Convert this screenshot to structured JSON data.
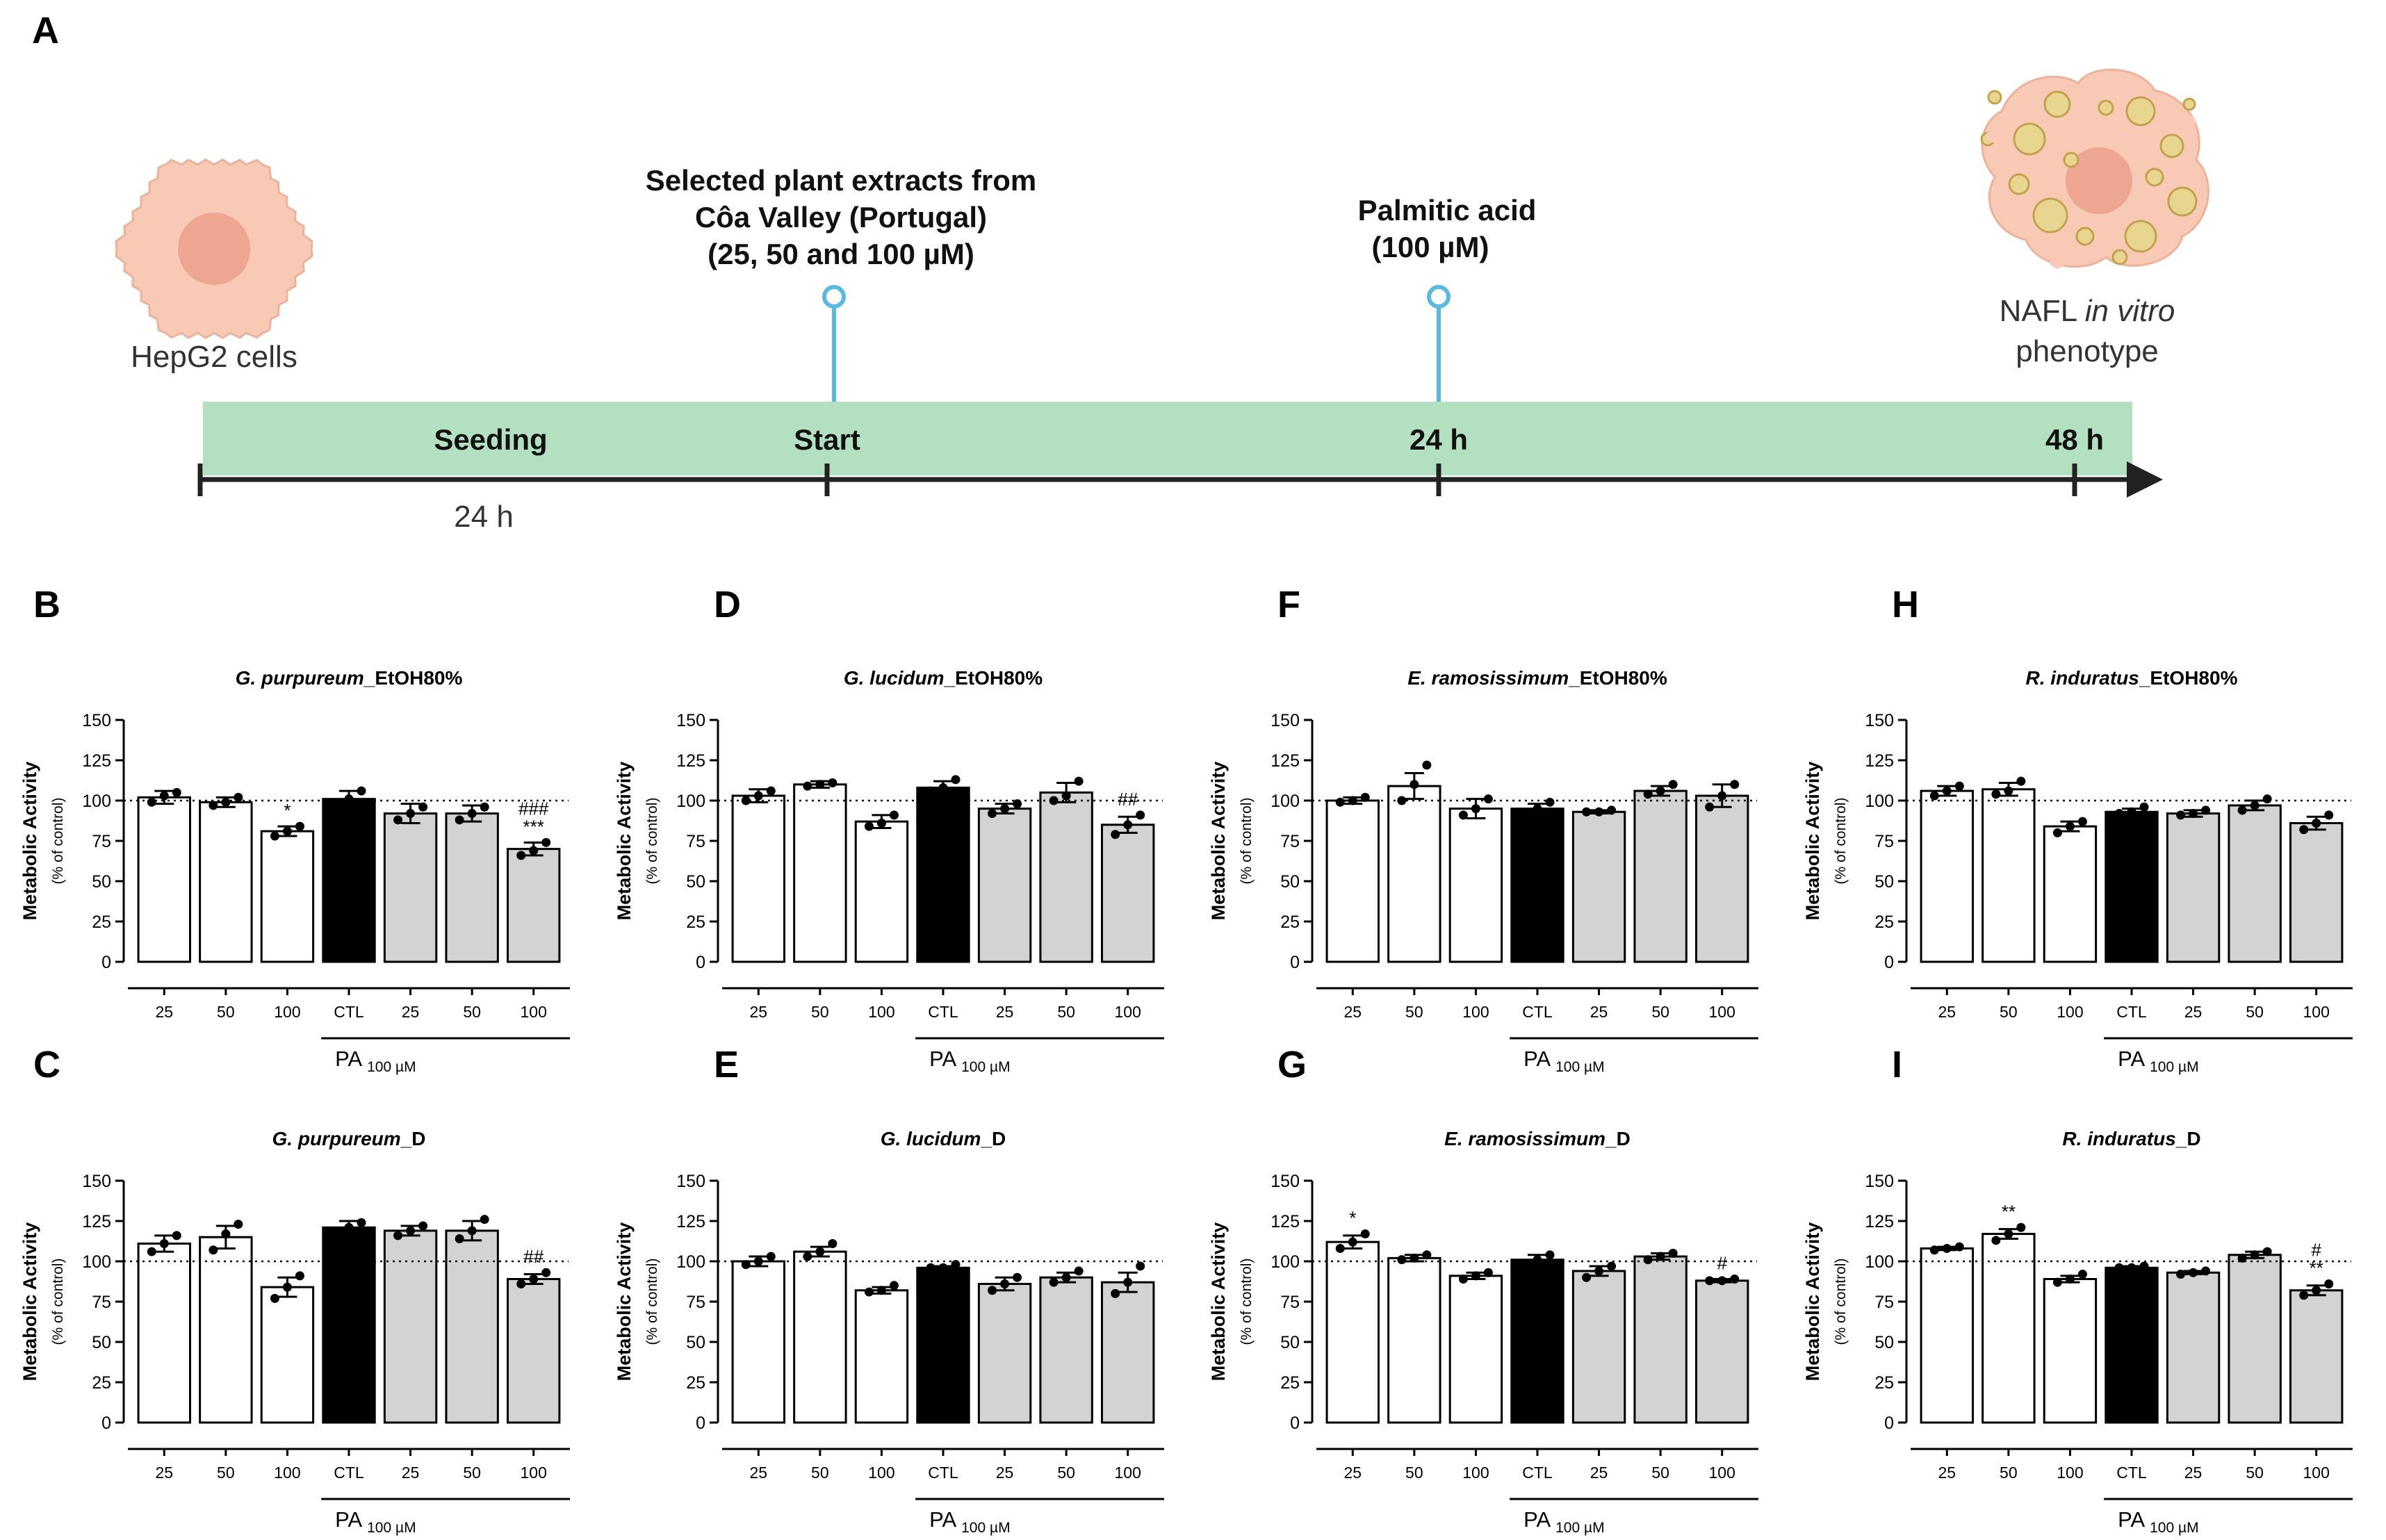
{
  "figure": {
    "panel_A_letter": "A",
    "timeline": {
      "cells_label": "HepG2 cells",
      "extract_lines": [
        "Selected plant extracts from",
        "Côa Valley (Portugal)",
        "(25, 50 and 100 µM)"
      ],
      "pa_lines": [
        "Palmitic acid",
        "(100 µM)"
      ],
      "seeding": "Seeding",
      "start": "Start",
      "t24": "24 h",
      "t48": "48 h",
      "below_24h": "24 h",
      "nafl_pre": "NAFL ",
      "nafl_italic": "in vitro",
      "nafl_line2": "phenotype"
    },
    "colors": {
      "timeline_band": "#b3e0c0",
      "marker": "#5bb8de",
      "cell_fill": "#f8c9b4",
      "cell_nucleus": "#eea592",
      "bar_extract": "#ffffff",
      "bar_ctl": "#000000",
      "bar_pa": "#d3d3d3"
    },
    "icons": [
      "hepg2-cell-icon",
      "nafl-cell-icon"
    ]
  },
  "chart_data": [
    {
      "panel": "B",
      "type": "bar",
      "title_species": "G. purpureum",
      "title_suffix": "_EtOH80%",
      "ylabel": "Metabolic Activity",
      "ylabel_sub": "(% of control)",
      "ylim": [
        0,
        150
      ],
      "yticks": [
        0,
        25,
        50,
        75,
        100,
        125,
        150
      ],
      "categories": [
        "25",
        "50",
        "100",
        "CTL",
        "25",
        "50",
        "100"
      ],
      "group_label": "PA",
      "group_sub": "100 µM",
      "reference_line": 100,
      "values": [
        102,
        99,
        81,
        101,
        92,
        92,
        70
      ],
      "sem": [
        4,
        3,
        3,
        5,
        6,
        5,
        4
      ],
      "points": [
        [
          99,
          103,
          105
        ],
        [
          97,
          99,
          102
        ],
        [
          78,
          81,
          84
        ],
        [
          98,
          101,
          106
        ],
        [
          88,
          92,
          96
        ],
        [
          88,
          92,
          96
        ],
        [
          66,
          69,
          74
        ]
      ],
      "annotations": [
        {
          "index": 2,
          "lines": [
            "*"
          ]
        },
        {
          "index": 6,
          "lines": [
            "###",
            "***"
          ]
        }
      ]
    },
    {
      "panel": "D",
      "type": "bar",
      "title_species": "G. lucidum",
      "title_suffix": "_EtOH80%",
      "ylabel": "Metabolic Activity",
      "ylabel_sub": "(% of control)",
      "ylim": [
        0,
        150
      ],
      "yticks": [
        0,
        25,
        50,
        75,
        100,
        125,
        150
      ],
      "categories": [
        "25",
        "50",
        "100",
        "CTL",
        "25",
        "50",
        "100"
      ],
      "group_label": "PA",
      "group_sub": "100 µM",
      "reference_line": 100,
      "values": [
        103,
        110,
        87,
        108,
        95,
        105,
        85
      ],
      "sem": [
        4,
        2,
        4,
        4,
        3,
        6,
        5
      ],
      "points": [
        [
          100,
          103,
          106
        ],
        [
          109,
          110,
          111
        ],
        [
          84,
          86,
          91
        ],
        [
          106,
          108,
          113
        ],
        [
          92,
          95,
          98
        ],
        [
          100,
          103,
          112
        ],
        [
          79,
          85,
          91
        ]
      ],
      "annotations": [
        {
          "index": 6,
          "lines": [
            "##"
          ]
        }
      ]
    },
    {
      "panel": "F",
      "type": "bar",
      "title_species": "E. ramosissimum",
      "title_suffix": "_EtOH80%",
      "ylabel": "Metabolic Activity",
      "ylabel_sub": "(% of control)",
      "ylim": [
        0,
        150
      ],
      "yticks": [
        0,
        25,
        50,
        75,
        100,
        125,
        150
      ],
      "categories": [
        "25",
        "50",
        "100",
        "CTL",
        "25",
        "50",
        "100"
      ],
      "group_label": "PA",
      "group_sub": "100 µM",
      "reference_line": 100,
      "values": [
        100,
        109,
        95,
        95,
        93,
        106,
        103
      ],
      "sem": [
        2,
        8,
        6,
        3,
        1,
        3,
        7
      ],
      "points": [
        [
          99,
          100,
          102
        ],
        [
          100,
          110,
          122
        ],
        [
          91,
          95,
          101
        ],
        [
          91,
          95,
          99
        ],
        [
          93,
          93,
          94
        ],
        [
          104,
          106,
          110
        ],
        [
          96,
          103,
          110
        ]
      ],
      "annotations": []
    },
    {
      "panel": "H",
      "type": "bar",
      "title_species": "R. induratus",
      "title_suffix": "_EtOH80%",
      "ylabel": "Metabolic Activity",
      "ylabel_sub": "(% of control)",
      "ylim": [
        0,
        150
      ],
      "yticks": [
        0,
        25,
        50,
        75,
        100,
        125,
        150
      ],
      "categories": [
        "25",
        "50",
        "100",
        "CTL",
        "25",
        "50",
        "100"
      ],
      "group_label": "PA",
      "group_sub": "100 µM",
      "reference_line": 100,
      "values": [
        106,
        107,
        84,
        93,
        92,
        97,
        86
      ],
      "sem": [
        3,
        4,
        3,
        2,
        2,
        3,
        4
      ],
      "points": [
        [
          103,
          106,
          109
        ],
        [
          104,
          106,
          112
        ],
        [
          80,
          84,
          87
        ],
        [
          92,
          93,
          96
        ],
        [
          91,
          92,
          94
        ],
        [
          94,
          97,
          101
        ],
        [
          82,
          86,
          91
        ]
      ],
      "annotations": []
    },
    {
      "panel": "C",
      "type": "bar",
      "title_species": "G. purpureum",
      "title_suffix": "_D",
      "ylabel": "Metabolic Activity",
      "ylabel_sub": "(% of control)",
      "ylim": [
        0,
        150
      ],
      "yticks": [
        0,
        25,
        50,
        75,
        100,
        125,
        150
      ],
      "categories": [
        "25",
        "50",
        "100",
        "CTL",
        "25",
        "50",
        "100"
      ],
      "group_label": "PA",
      "group_sub": "100 µM",
      "reference_line": 100,
      "values": [
        111,
        115,
        84,
        121,
        119,
        119,
        89
      ],
      "sem": [
        5,
        7,
        6,
        4,
        3,
        6,
        3
      ],
      "points": [
        [
          106,
          111,
          116
        ],
        [
          107,
          117,
          123
        ],
        [
          77,
          84,
          91
        ],
        [
          117,
          121,
          124
        ],
        [
          116,
          119,
          122
        ],
        [
          114,
          119,
          126
        ],
        [
          86,
          89,
          93
        ]
      ],
      "annotations": [
        {
          "index": 6,
          "lines": [
            "##"
          ]
        }
      ]
    },
    {
      "panel": "E",
      "type": "bar",
      "title_species": "G. lucidum",
      "title_suffix": "_D",
      "ylabel": "Metabolic Activity",
      "ylabel_sub": "(% of control)",
      "ylim": [
        0,
        150
      ],
      "yticks": [
        0,
        25,
        50,
        75,
        100,
        125,
        150
      ],
      "categories": [
        "25",
        "50",
        "100",
        "CTL",
        "25",
        "50",
        "100"
      ],
      "group_label": "PA",
      "group_sub": "100 µM",
      "reference_line": 100,
      "values": [
        100,
        106,
        82,
        96,
        86,
        90,
        87
      ],
      "sem": [
        3,
        3,
        2,
        1,
        4,
        3,
        6
      ],
      "points": [
        [
          98,
          100,
          103
        ],
        [
          103,
          106,
          111
        ],
        [
          81,
          82,
          85
        ],
        [
          96,
          96,
          98
        ],
        [
          82,
          86,
          90
        ],
        [
          87,
          90,
          94
        ],
        [
          80,
          87,
          97
        ]
      ],
      "annotations": []
    },
    {
      "panel": "G",
      "type": "bar",
      "title_species": "E. ramosissimum",
      "title_suffix": "_D",
      "ylabel": "Metabolic Activity",
      "ylabel_sub": "(% of control)",
      "ylim": [
        0,
        150
      ],
      "yticks": [
        0,
        25,
        50,
        75,
        100,
        125,
        150
      ],
      "categories": [
        "25",
        "50",
        "100",
        "CTL",
        "25",
        "50",
        "100"
      ],
      "group_label": "PA",
      "group_sub": "100 µM",
      "reference_line": 100,
      "values": [
        112,
        102,
        91,
        101,
        94,
        103,
        88
      ],
      "sem": [
        4,
        2,
        2,
        3,
        3,
        2,
        1
      ],
      "points": [
        [
          108,
          112,
          117
        ],
        [
          101,
          102,
          104
        ],
        [
          89,
          91,
          93
        ],
        [
          98,
          101,
          104
        ],
        [
          90,
          94,
          97
        ],
        [
          101,
          103,
          105
        ],
        [
          88,
          88,
          89
        ]
      ],
      "annotations": [
        {
          "index": 0,
          "lines": [
            "*"
          ]
        },
        {
          "index": 6,
          "lines": [
            "#"
          ]
        }
      ]
    },
    {
      "panel": "I",
      "type": "bar",
      "title_species": "R. induratus",
      "title_suffix": "_D",
      "ylabel": "Metabolic Activity",
      "ylabel_sub": "(% of control)",
      "ylim": [
        0,
        150
      ],
      "yticks": [
        0,
        25,
        50,
        75,
        100,
        125,
        150
      ],
      "categories": [
        "25",
        "50",
        "100",
        "CTL",
        "25",
        "50",
        "100"
      ],
      "group_label": "PA",
      "group_sub": "100 µM",
      "reference_line": 100,
      "values": [
        108,
        117,
        89,
        96,
        93,
        104,
        82
      ],
      "sem": [
        1,
        3,
        2,
        1,
        1,
        2,
        3
      ],
      "points": [
        [
          107,
          108,
          109
        ],
        [
          113,
          117,
          121
        ],
        [
          87,
          89,
          92
        ],
        [
          96,
          96,
          97
        ],
        [
          92,
          93,
          94
        ],
        [
          102,
          104,
          106
        ],
        [
          79,
          82,
          86
        ]
      ],
      "annotations": [
        {
          "index": 1,
          "lines": [
            "**"
          ]
        },
        {
          "index": 6,
          "lines": [
            "#",
            "**"
          ]
        }
      ]
    }
  ]
}
